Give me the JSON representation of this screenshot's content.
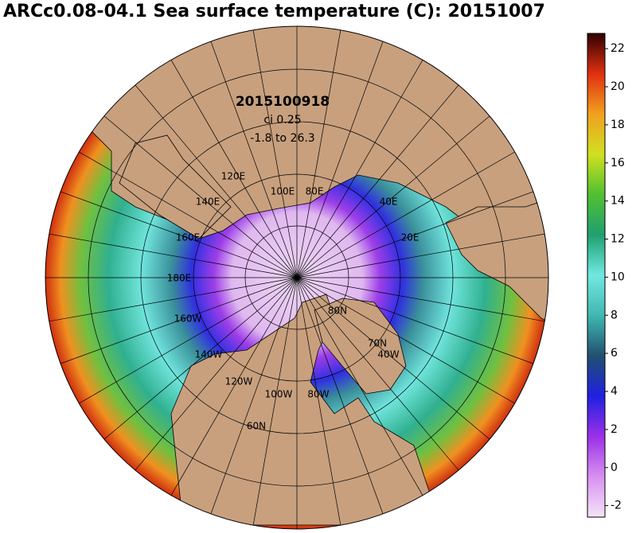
{
  "title": "ARCc0.08-04.1 Sea surface temperature (C): 20151007",
  "map": {
    "date_label": "2015100918",
    "contour_interval": "ci 0.25",
    "range_label": "-1.8 to 26.3",
    "graticule_labels": [
      "120E",
      "140E",
      "160E",
      "180E",
      "160W",
      "140W",
      "120W",
      "100W",
      "80W",
      "100E",
      "80E",
      "40E",
      "20E",
      "80N",
      "70N",
      "60N",
      "40W"
    ]
  },
  "colorbar": {
    "lim": [
      -2.6,
      22.8
    ],
    "ticks": [
      -2,
      0,
      2,
      4,
      6,
      8,
      10,
      12,
      14,
      16,
      18,
      20,
      22
    ],
    "colors": [
      "#f4e4f8",
      "#d890f0",
      "#9b30e8",
      "#2020e0",
      "#205070",
      "#40b8b0",
      "#70e8e0",
      "#20a070",
      "#50c030",
      "#d0e020",
      "#f0a020",
      "#e03010",
      "#300000"
    ]
  }
}
